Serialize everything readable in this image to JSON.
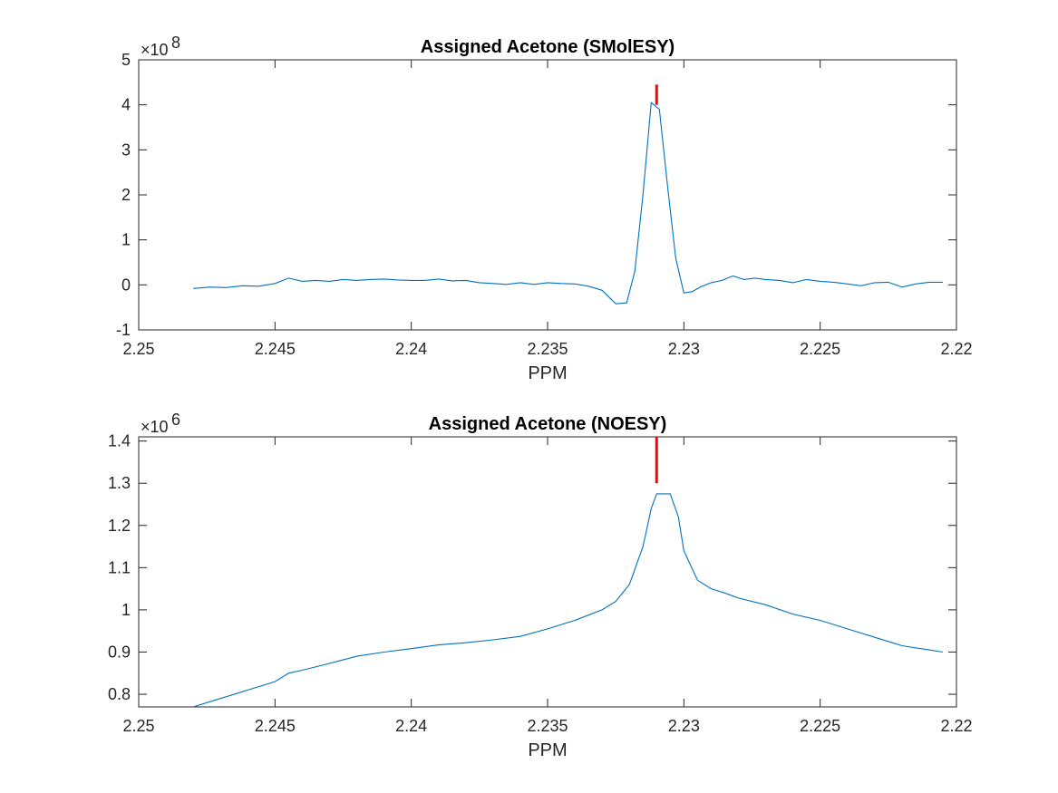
{
  "chart_data": [
    {
      "type": "line",
      "title": "Assigned Acetone (SMolESY)",
      "xlabel": "PPM",
      "ylabel": "",
      "x_reversed": true,
      "xlim": [
        2.22,
        2.25
      ],
      "ylim": [
        -1,
        5
      ],
      "y_exponent": "8",
      "y_exponent_base": "×10",
      "x_ticks": [
        "2.25",
        "2.245",
        "2.24",
        "2.235",
        "2.23",
        "2.225",
        "2.22"
      ],
      "y_ticks": [
        "-1",
        "0",
        "1",
        "2",
        "3",
        "4",
        "5"
      ],
      "grid": false,
      "line_color": "#0072BD",
      "marker_color": "#FF0000",
      "marker": {
        "x": 2.231,
        "y_from": 4.0,
        "y_to": 4.45
      },
      "series": [
        {
          "x": [
            2.248,
            2.2474,
            2.2468,
            2.2462,
            2.2456,
            2.245,
            2.2445,
            2.244,
            2.2435,
            2.243,
            2.2425,
            2.242,
            2.2415,
            2.241,
            2.2405,
            2.24,
            2.2395,
            2.239,
            2.2385,
            2.238,
            2.2375,
            2.237,
            2.2365,
            2.236,
            2.2355,
            2.235,
            2.2345,
            2.234,
            2.2335,
            2.233,
            2.2325,
            2.2321,
            2.2318,
            2.2315,
            2.2312,
            2.2309,
            2.2306,
            2.2303,
            2.23,
            2.2297,
            2.2294,
            2.229,
            2.2286,
            2.2282,
            2.2278,
            2.2274,
            2.227,
            2.2265,
            2.226,
            2.2255,
            2.225,
            2.2245,
            2.224,
            2.2235,
            2.223,
            2.2225,
            2.222,
            2.2215,
            2.221,
            2.2205
          ],
          "y": [
            -0.08,
            -0.05,
            -0.06,
            -0.02,
            -0.03,
            0.03,
            0.15,
            0.08,
            0.1,
            0.08,
            0.12,
            0.1,
            0.12,
            0.13,
            0.11,
            0.1,
            0.1,
            0.13,
            0.09,
            0.1,
            0.05,
            0.03,
            0.01,
            0.05,
            0.01,
            0.05,
            0.03,
            0.02,
            -0.03,
            -0.12,
            -0.42,
            -0.4,
            0.3,
            2.0,
            4.05,
            3.9,
            2.2,
            0.6,
            -0.18,
            -0.15,
            -0.05,
            0.05,
            0.1,
            0.2,
            0.12,
            0.15,
            0.12,
            0.1,
            0.05,
            0.12,
            0.08,
            0.06,
            0.02,
            -0.02,
            0.05,
            0.06,
            -0.05,
            0.02,
            0.06,
            0.06
          ]
        }
      ]
    },
    {
      "type": "line",
      "title": "Assigned Acetone (NOESY)",
      "xlabel": "PPM",
      "ylabel": "",
      "x_reversed": true,
      "xlim": [
        2.22,
        2.25
      ],
      "ylim": [
        0.77,
        1.41
      ],
      "y_exponent": "6",
      "y_exponent_base": "×10",
      "x_ticks": [
        "2.25",
        "2.245",
        "2.24",
        "2.235",
        "2.23",
        "2.225",
        "2.22"
      ],
      "y_ticks": [
        "0.8",
        "0.9",
        "1",
        "1.1",
        "1.2",
        "1.3",
        "1.4"
      ],
      "grid": false,
      "line_color": "#0072BD",
      "marker_color": "#FF0000",
      "marker": {
        "x": 2.231,
        "y_from": 1.3,
        "y_to": 1.41
      },
      "series": [
        {
          "x": [
            2.248,
            2.247,
            2.246,
            2.245,
            2.2445,
            2.244,
            2.243,
            2.242,
            2.241,
            2.24,
            2.239,
            2.238,
            2.237,
            2.236,
            2.235,
            2.234,
            2.233,
            2.2325,
            2.232,
            2.2315,
            2.2312,
            2.231,
            2.2305,
            2.2302,
            2.23,
            2.2295,
            2.229,
            2.2285,
            2.228,
            2.227,
            2.226,
            2.225,
            2.224,
            2.2235,
            2.223,
            2.2225,
            2.222,
            2.221,
            2.2205
          ],
          "y": [
            0.77,
            0.79,
            0.81,
            0.83,
            0.85,
            0.857,
            0.873,
            0.89,
            0.9,
            0.908,
            0.917,
            0.922,
            0.929,
            0.937,
            0.955,
            0.975,
            1.0,
            1.02,
            1.06,
            1.15,
            1.24,
            1.275,
            1.275,
            1.22,
            1.14,
            1.07,
            1.05,
            1.04,
            1.028,
            1.012,
            0.99,
            0.975,
            0.955,
            0.945,
            0.935,
            0.925,
            0.915,
            0.905,
            0.9
          ]
        }
      ]
    }
  ]
}
